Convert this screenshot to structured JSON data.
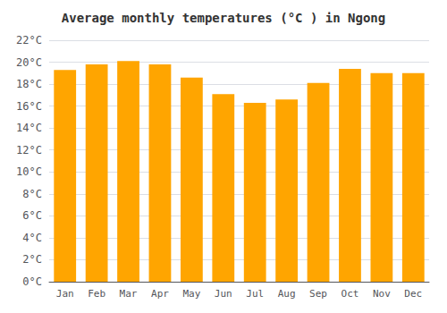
{
  "chart_data": {
    "type": "bar",
    "title": "Average monthly temperatures (°C ) in Ngong",
    "categories": [
      "Jan",
      "Feb",
      "Mar",
      "Apr",
      "May",
      "Jun",
      "Jul",
      "Aug",
      "Sep",
      "Oct",
      "Nov",
      "Dec"
    ],
    "values": [
      19.3,
      19.8,
      20.1,
      19.8,
      18.6,
      17.1,
      16.3,
      16.6,
      18.1,
      19.4,
      19.0,
      19.0
    ],
    "color": "#FFA500",
    "ylim": [
      0,
      22
    ],
    "yticks": [
      {
        "value": 0,
        "label": "0°C"
      },
      {
        "value": 2,
        "label": "2°C"
      },
      {
        "value": 4,
        "label": "4°C"
      },
      {
        "value": 6,
        "label": "6°C"
      },
      {
        "value": 8,
        "label": "8°C"
      },
      {
        "value": 10,
        "label": "10°C"
      },
      {
        "value": 12,
        "label": "12°C"
      },
      {
        "value": 14,
        "label": "14°C"
      },
      {
        "value": 16,
        "label": "16°C"
      },
      {
        "value": 18,
        "label": "18°C"
      },
      {
        "value": 20,
        "label": "20°C"
      },
      {
        "value": 22,
        "label": "22°C"
      }
    ],
    "grid": true
  }
}
